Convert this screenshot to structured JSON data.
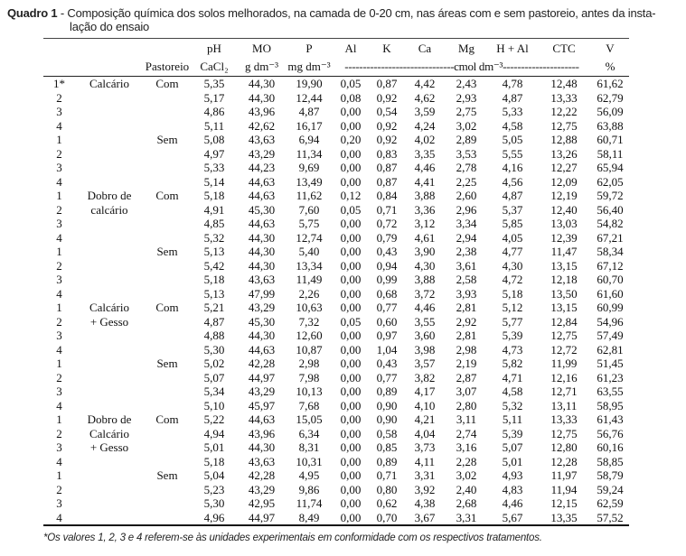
{
  "title": {
    "prefix": "Quadro 1",
    "line1": "- Composição química dos solos melhorados, na camada de 0-20 cm, nas áreas com e sem pastoreio, antes da insta-",
    "line2": "lação do ensaio"
  },
  "table": {
    "header": {
      "pastoreio": "Pastoreio",
      "ph": "pH",
      "ph_unit": "CaCl₂",
      "mo": "MO",
      "mo_unit": "g dm⁻³",
      "p": "P",
      "p_unit": "mg dm⁻³",
      "al": "Al",
      "k": "K",
      "ca": "Ca",
      "mg": "Mg",
      "h_al": "H + Al",
      "ctc": "CTC",
      "v": "V",
      "v_unit": "%",
      "cmol_span": "------------------------------cmol dm⁻³---------------------"
    },
    "columns": [
      "row-number",
      "treatment",
      "pastoreio",
      "ph",
      "mo",
      "p",
      "al",
      "k",
      "ca",
      "mg",
      "h-al",
      "ctc",
      "v"
    ],
    "rows": [
      [
        "1*",
        "Calcário",
        "Com",
        "5,35",
        "44,30",
        "19,90",
        "0,05",
        "0,87",
        "4,42",
        "2,43",
        "4,78",
        "12,48",
        "61,62"
      ],
      [
        "2",
        "",
        "",
        "5,17",
        "44,30",
        "12,44",
        "0,08",
        "0,92",
        "4,62",
        "2,93",
        "4,87",
        "13,33",
        "62,79"
      ],
      [
        "3",
        "",
        "",
        "4,86",
        "43,96",
        "4,87",
        "0,00",
        "0,54",
        "3,59",
        "2,75",
        "5,33",
        "12,22",
        "56,09"
      ],
      [
        "4",
        "",
        "",
        "5,11",
        "42,62",
        "16,17",
        "0,00",
        "0,92",
        "4,24",
        "3,02",
        "4,58",
        "12,75",
        "63,88"
      ],
      [
        "1",
        "",
        "Sem",
        "5,08",
        "43,63",
        "6,94",
        "0,20",
        "0,92",
        "4,02",
        "2,89",
        "5,05",
        "12,88",
        "60,71"
      ],
      [
        "2",
        "",
        "",
        "4,97",
        "43,29",
        "11,34",
        "0,00",
        "0,83",
        "3,35",
        "3,53",
        "5,55",
        "13,26",
        "58,11"
      ],
      [
        "3",
        "",
        "",
        "5,33",
        "44,23",
        "9,69",
        "0,00",
        "0,87",
        "4,46",
        "2,78",
        "4,16",
        "12,27",
        "65,94"
      ],
      [
        "4",
        "",
        "",
        "5,14",
        "44,63",
        "13,49",
        "0,00",
        "0,87",
        "4,41",
        "2,25",
        "4,56",
        "12,09",
        "62,05"
      ],
      [
        "1",
        "Dobro de",
        "Com",
        "5,18",
        "44,63",
        "11,62",
        "0,12",
        "0,84",
        "3,88",
        "2,60",
        "4,87",
        "12,19",
        "59,72"
      ],
      [
        "2",
        "calcário",
        "",
        "4,91",
        "45,30",
        "7,60",
        "0,05",
        "0,71",
        "3,36",
        "2,96",
        "5,37",
        "12,40",
        "56,40"
      ],
      [
        "3",
        "",
        "",
        "4,85",
        "44,63",
        "5,75",
        "0,00",
        "0,72",
        "3,12",
        "3,34",
        "5,85",
        "13,03",
        "54,82"
      ],
      [
        "4",
        "",
        "",
        "5,32",
        "44,30",
        "12,74",
        "0,00",
        "0,79",
        "4,61",
        "2,94",
        "4,05",
        "12,39",
        "67,21"
      ],
      [
        "1",
        "",
        "Sem",
        "5,13",
        "44,30",
        "5,40",
        "0,00",
        "0,43",
        "3,90",
        "2,38",
        "4,77",
        "11,47",
        "58,34"
      ],
      [
        "2",
        "",
        "",
        "5,42",
        "44,30",
        "13,34",
        "0,00",
        "0,94",
        "4,30",
        "3,61",
        "4,30",
        "13,15",
        "67,12"
      ],
      [
        "3",
        "",
        "",
        "5,18",
        "43,63",
        "11,49",
        "0,00",
        "0,99",
        "3,88",
        "2,58",
        "4,72",
        "12,18",
        "60,70"
      ],
      [
        "4",
        "",
        "",
        "5,13",
        "47,99",
        "2,26",
        "0,00",
        "0,68",
        "3,72",
        "3,93",
        "5,18",
        "13,50",
        "61,60"
      ],
      [
        "1",
        "Calcário",
        "Com",
        "5,21",
        "43,29",
        "10,63",
        "0,00",
        "0,77",
        "4,46",
        "2,81",
        "5,12",
        "13,15",
        "60,99"
      ],
      [
        "2",
        "+ Gesso",
        "",
        "4,87",
        "45,30",
        "7,32",
        "0,05",
        "0,60",
        "3,55",
        "2,92",
        "5,77",
        "12,84",
        "54,96"
      ],
      [
        "3",
        "",
        "",
        "4,88",
        "44,30",
        "12,60",
        "0,00",
        "0,97",
        "3,60",
        "2,81",
        "5,39",
        "12,75",
        "57,49"
      ],
      [
        "4",
        "",
        "",
        "5,30",
        "44,63",
        "10,87",
        "0,00",
        "1,04",
        "3,98",
        "2,98",
        "4,73",
        "12,72",
        "62,81"
      ],
      [
        "1",
        "",
        "Sem",
        "5,02",
        "42,28",
        "2,98",
        "0,00",
        "0,43",
        "3,57",
        "2,19",
        "5,82",
        "11,99",
        "51,45"
      ],
      [
        "2",
        "",
        "",
        "5,07",
        "44,97",
        "7,98",
        "0,00",
        "0,77",
        "3,82",
        "2,87",
        "4,71",
        "12,16",
        "61,23"
      ],
      [
        "3",
        "",
        "",
        "5,34",
        "43,29",
        "10,13",
        "0,00",
        "0,89",
        "4,17",
        "3,07",
        "4,58",
        "12,71",
        "63,55"
      ],
      [
        "4",
        "",
        "",
        "5,10",
        "45,97",
        "7,68",
        "0,00",
        "0,90",
        "4,10",
        "2,80",
        "5,32",
        "13,11",
        "58,95"
      ],
      [
        "1",
        "Dobro de",
        "Com",
        "5,22",
        "44,63",
        "15,05",
        "0,00",
        "0,90",
        "4,21",
        "3,11",
        "5,11",
        "13,33",
        "61,43"
      ],
      [
        "2",
        "Calcário",
        "",
        "4,94",
        "43,96",
        "6,34",
        "0,00",
        "0,58",
        "4,04",
        "2,74",
        "5,39",
        "12,75",
        "56,76"
      ],
      [
        "3",
        "+ Gesso",
        "",
        "5,01",
        "44,30",
        "8,31",
        "0,00",
        "0,85",
        "3,73",
        "3,16",
        "5,07",
        "12,80",
        "60,16"
      ],
      [
        "4",
        "",
        "",
        "5,18",
        "43,63",
        "10,31",
        "0,00",
        "0,89",
        "4,11",
        "2,28",
        "5,01",
        "12,28",
        "58,85"
      ],
      [
        "1",
        "",
        "Sem",
        "5,04",
        "42,28",
        "4,95",
        "0,00",
        "0,71",
        "3,31",
        "3,02",
        "4,93",
        "11,97",
        "58,79"
      ],
      [
        "2",
        "",
        "",
        "5,23",
        "43,29",
        "9,86",
        "0,00",
        "0,80",
        "3,92",
        "2,40",
        "4,83",
        "11,94",
        "59,24"
      ],
      [
        "3",
        "",
        "",
        "5,30",
        "42,95",
        "11,74",
        "0,00",
        "0,62",
        "4,38",
        "2,68",
        "4,46",
        "12,15",
        "62,59"
      ],
      [
        "4",
        "",
        "",
        "4,96",
        "44,97",
        "8,49",
        "0,00",
        "0,70",
        "3,67",
        "3,31",
        "5,67",
        "13,35",
        "57,52"
      ]
    ]
  },
  "footnote": "*Os valores 1, 2, 3 e 4 referem-se às unidades experimentais em conformidade com os respectivos tratamentos."
}
